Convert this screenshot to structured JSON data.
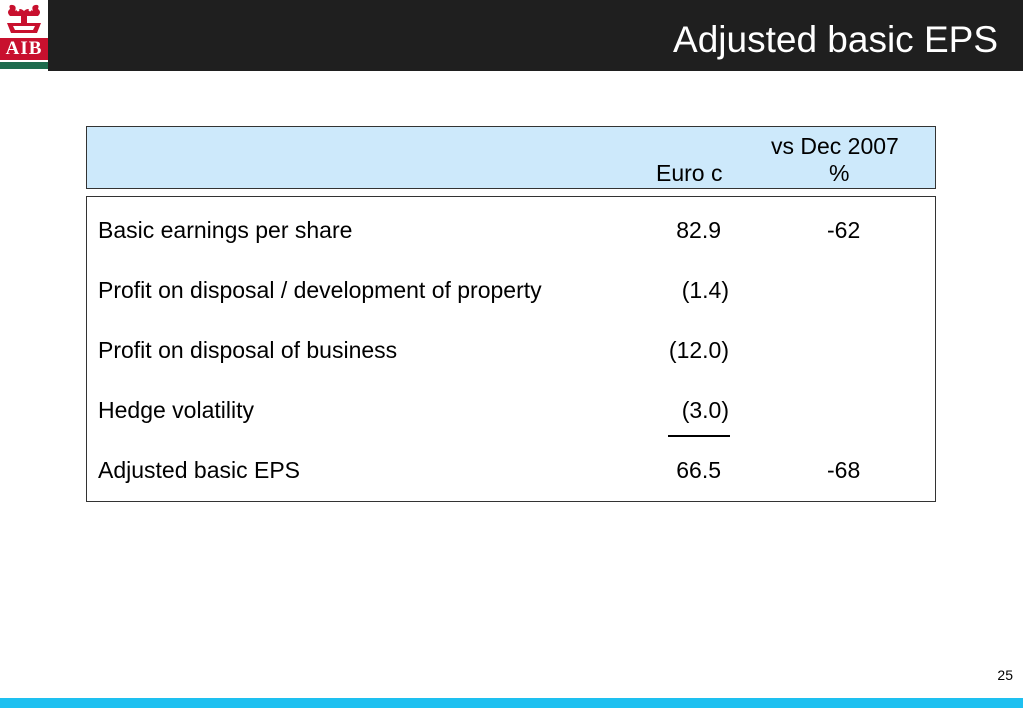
{
  "brand": {
    "logo_text": "AIB",
    "colors": {
      "header_bg": "#1f1f1f",
      "header_box_bg": "#cde9fb",
      "footer_accent": "#1ec0f0",
      "logo_red": "#c8102e",
      "logo_green": "#1e6b4e"
    }
  },
  "slide": {
    "title": "Adjusted basic EPS",
    "page_number": "25"
  },
  "table": {
    "column_headers": {
      "value_label": "Euro c",
      "change_label_line1": "vs Dec 2007",
      "change_label_line2": "%"
    },
    "rows": [
      {
        "label": "Basic earnings per share",
        "value": "82.9",
        "change": "-62"
      },
      {
        "label": "Profit on disposal / development of property",
        "value": "(1.4)",
        "change": ""
      },
      {
        "label": "Profit on disposal of business",
        "value": "(12.0)",
        "change": ""
      },
      {
        "label": "Hedge volatility",
        "value": "(3.0)",
        "change": ""
      },
      {
        "label": "Adjusted basic EPS",
        "value": "66.5",
        "change": "-68"
      }
    ]
  }
}
